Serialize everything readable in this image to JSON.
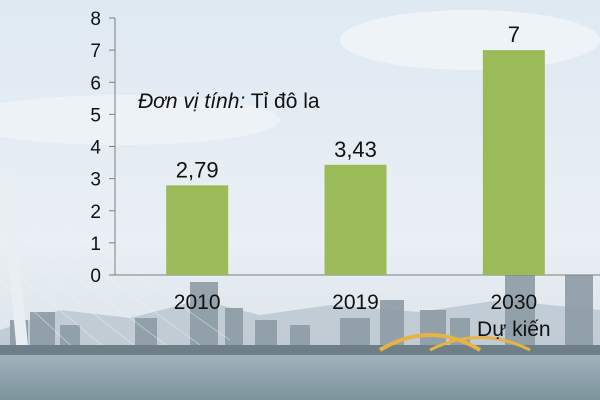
{
  "unit_note": {
    "label": "Đơn vị tính:",
    "value": "Tỉ đô la"
  },
  "chart_data": {
    "type": "bar",
    "categories": [
      "2010",
      "2019",
      "2030"
    ],
    "category_sublabels": [
      "",
      "",
      "Dự kiến"
    ],
    "values": [
      2.79,
      3.43,
      7
    ],
    "value_labels": [
      "2,79",
      "3,43",
      "7"
    ],
    "ylim": [
      0,
      8
    ],
    "yticks": [
      0,
      1,
      2,
      3,
      4,
      5,
      6,
      7,
      8
    ],
    "title": "",
    "xlabel": "",
    "ylabel": "",
    "grid": false,
    "bar_color": "#9bbb59",
    "axis_color": "#7f7f7f"
  }
}
